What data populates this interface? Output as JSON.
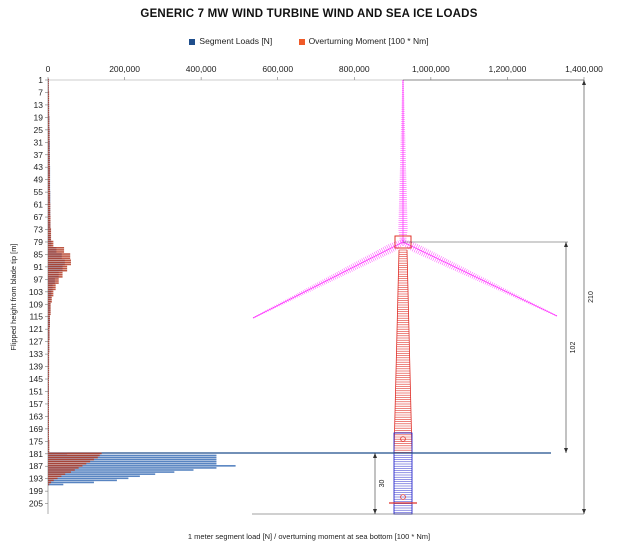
{
  "chart_data": {
    "type": "bar",
    "orientation": "horizontal",
    "title": "GENERIC 7 MW WIND TURBINE WIND AND SEA ICE LOADS",
    "xlabel": "1 meter segment load [N] / overturning moment at sea bottom [100 * Nm]",
    "ylabel": "Flipped height  from blade tip [m]",
    "xlim": [
      0,
      1400000
    ],
    "x_ticks": [
      0,
      200000,
      400000,
      600000,
      800000,
      1000000,
      1200000,
      1400000
    ],
    "x_tick_labels": [
      "0",
      "200,000",
      "400,000",
      "600,000",
      "800,000",
      "1,000,000",
      "1,200,000",
      "1,400,000"
    ],
    "ylim": [
      1,
      210
    ],
    "y_ticks": [
      1,
      7,
      13,
      19,
      25,
      31,
      37,
      43,
      49,
      55,
      61,
      67,
      73,
      79,
      85,
      91,
      97,
      103,
      109,
      115,
      121,
      127,
      133,
      139,
      145,
      151,
      157,
      163,
      169,
      175,
      181,
      187,
      193,
      199,
      205
    ],
    "legend_position": "top-center",
    "series": [
      {
        "name": "Segment Loads [N]",
        "color": "#1f4e8c",
        "points": [
          [
            1,
            1500
          ],
          [
            7,
            2500
          ],
          [
            13,
            3000
          ],
          [
            19,
            4000
          ],
          [
            25,
            4500
          ],
          [
            31,
            5000
          ],
          [
            37,
            5000
          ],
          [
            43,
            5500
          ],
          [
            49,
            5500
          ],
          [
            55,
            6000
          ],
          [
            61,
            6000
          ],
          [
            67,
            6500
          ],
          [
            73,
            7000
          ],
          [
            79,
            9000
          ],
          [
            82,
            22000
          ],
          [
            85,
            36000
          ],
          [
            88,
            44000
          ],
          [
            91,
            38000
          ],
          [
            94,
            28000
          ],
          [
            97,
            18000
          ],
          [
            100,
            12000
          ],
          [
            103,
            9000
          ],
          [
            106,
            7000
          ],
          [
            109,
            6000
          ],
          [
            115,
            5000
          ],
          [
            121,
            4000
          ],
          [
            127,
            3000
          ],
          [
            133,
            2500
          ],
          [
            139,
            2000
          ],
          [
            145,
            2000
          ],
          [
            151,
            2000
          ],
          [
            157,
            2000
          ],
          [
            163,
            2000
          ],
          [
            169,
            2000
          ],
          [
            175,
            2500
          ],
          [
            181,
            50000
          ],
          [
            182,
            440000
          ],
          [
            183,
            440000
          ],
          [
            184,
            440000
          ],
          [
            185,
            440000
          ],
          [
            186,
            440000
          ],
          [
            187,
            490000
          ],
          [
            188,
            440000
          ],
          [
            189,
            380000
          ],
          [
            190,
            330000
          ],
          [
            191,
            280000
          ],
          [
            192,
            240000
          ],
          [
            193,
            210000
          ],
          [
            194,
            180000
          ],
          [
            195,
            120000
          ],
          [
            196,
            40000
          ]
        ]
      },
      {
        "name": "Overturning Moment [100 * Nm]",
        "color": "#f05a28",
        "points": [
          [
            1,
            2000
          ],
          [
            7,
            3000
          ],
          [
            13,
            3000
          ],
          [
            19,
            3500
          ],
          [
            25,
            4000
          ],
          [
            31,
            4000
          ],
          [
            37,
            4500
          ],
          [
            43,
            5000
          ],
          [
            49,
            5000
          ],
          [
            55,
            5500
          ],
          [
            61,
            6000
          ],
          [
            67,
            6500
          ],
          [
            73,
            8000
          ],
          [
            79,
            14000
          ],
          [
            82,
            42000
          ],
          [
            85,
            58000
          ],
          [
            88,
            60000
          ],
          [
            91,
            50000
          ],
          [
            94,
            38000
          ],
          [
            97,
            28000
          ],
          [
            100,
            20000
          ],
          [
            103,
            14000
          ],
          [
            106,
            10000
          ],
          [
            109,
            7000
          ],
          [
            115,
            5000
          ],
          [
            121,
            4000
          ],
          [
            127,
            3500
          ],
          [
            133,
            3000
          ],
          [
            139,
            3000
          ],
          [
            145,
            2500
          ],
          [
            151,
            2500
          ],
          [
            157,
            2500
          ],
          [
            163,
            2500
          ],
          [
            169,
            2500
          ],
          [
            175,
            3500
          ],
          [
            181,
            140000
          ],
          [
            182,
            135000
          ],
          [
            183,
            130000
          ],
          [
            184,
            120000
          ],
          [
            185,
            110000
          ],
          [
            186,
            100000
          ],
          [
            187,
            90000
          ],
          [
            188,
            80000
          ],
          [
            189,
            70000
          ],
          [
            190,
            60000
          ],
          [
            191,
            45000
          ],
          [
            192,
            35000
          ],
          [
            193,
            25000
          ],
          [
            194,
            15000
          ],
          [
            195,
            8000
          ],
          [
            196,
            3000
          ]
        ]
      }
    ],
    "overlay": {
      "type": "turbine-diagram",
      "blade_color": "#ff33ff",
      "tower_color": "#e0302a",
      "foundation_color": "#2a2acc",
      "dimension_labels": [
        "210",
        "102",
        "30"
      ],
      "sea_level_line_color": "#1f4e8c"
    }
  }
}
